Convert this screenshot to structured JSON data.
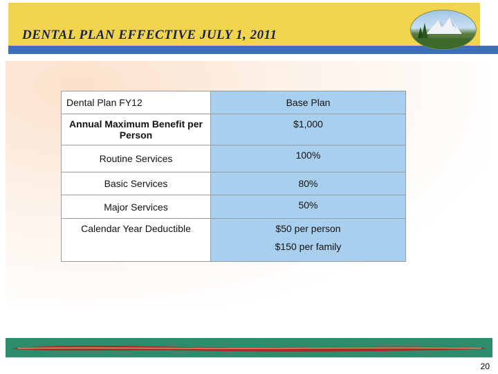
{
  "slide": {
    "title": "DENTAL PLAN EFFECTIVE JULY 1, 2011",
    "page_number": "20"
  },
  "table": {
    "header": {
      "label": "Dental Plan FY12",
      "value": "Base Plan"
    },
    "rows": [
      {
        "label": "Annual Maximum Benefit per Person",
        "value": "$1,000"
      },
      {
        "label": "Routine Services",
        "value": "100%"
      },
      {
        "label": "Basic Services",
        "value": "80%"
      },
      {
        "label": "Major Services",
        "value": "50%"
      },
      {
        "label": "Calendar Year Deductible",
        "value_line1": "$50 per person",
        "value_line2": "$150 per family"
      }
    ]
  },
  "colors": {
    "header_yellow": "#f2d54c",
    "header_blue": "#3f6fb4",
    "title_navy": "#15205a",
    "table_blue": "#a8d0ee",
    "footer_green": "#2d8c6b",
    "footer_red": "#b3262a"
  },
  "icons": {
    "logo": "mountain-landscape-logo"
  }
}
